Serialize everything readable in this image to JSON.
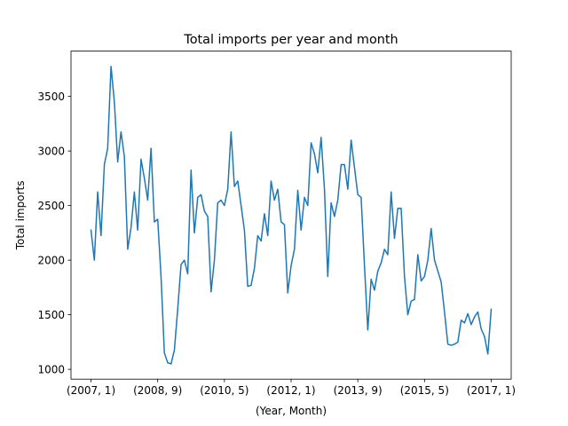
{
  "chart_data": {
    "type": "line",
    "title": "Total imports per year and month",
    "xlabel": "(Year, Month)",
    "ylabel": "Total imports",
    "xtick_labels": [
      "(2007, 1)",
      "(2008, 9)",
      "(2010, 5)",
      "(2012, 1)",
      "(2013, 9)",
      "(2015, 5)",
      "(2017, 1)"
    ],
    "ytick_labels": [
      "1000",
      "1500",
      "2000",
      "2500",
      "3000",
      "3500"
    ],
    "ytick_values": [
      1000,
      1500,
      2000,
      2500,
      3000,
      3500
    ],
    "ylim": [
      910,
      3915
    ],
    "grid": false,
    "line_color": "#1f77b4",
    "x_start": "2007-01",
    "x_end": "2017-01",
    "series": [
      {
        "values": [
          2275,
          2000,
          2625,
          2225,
          2875,
          3025,
          3775,
          3450,
          2900,
          3175,
          2950,
          2100,
          2300,
          2625,
          2275,
          2925,
          2750,
          2550,
          3025,
          2350,
          2375,
          1850,
          1150,
          1060,
          1050,
          1175,
          1550,
          1960,
          2000,
          1875,
          2825,
          2250,
          2575,
          2600,
          2450,
          2400,
          1710,
          2000,
          2525,
          2550,
          2500,
          2650,
          3175,
          2675,
          2725,
          2500,
          2275,
          1760,
          1770,
          1925,
          2225,
          2175,
          2425,
          2225,
          2725,
          2550,
          2650,
          2350,
          2325,
          1700,
          1950,
          2100,
          2640,
          2275,
          2575,
          2500,
          3075,
          2975,
          2800,
          3125,
          2650,
          1850,
          2525,
          2400,
          2550,
          2875,
          2875,
          2650,
          3100,
          2850,
          2600,
          2575,
          1950,
          1360,
          1825,
          1725,
          1900,
          1975,
          2100,
          2050,
          2625,
          2200,
          2475,
          2475,
          1850,
          1500,
          1625,
          1640,
          2050,
          1810,
          1850,
          2000,
          2290,
          2000,
          1900,
          1800,
          1525,
          1230,
          1220,
          1230,
          1250,
          1450,
          1425,
          1510,
          1410,
          1480,
          1525,
          1370,
          1300,
          1140,
          1550
        ]
      }
    ]
  }
}
